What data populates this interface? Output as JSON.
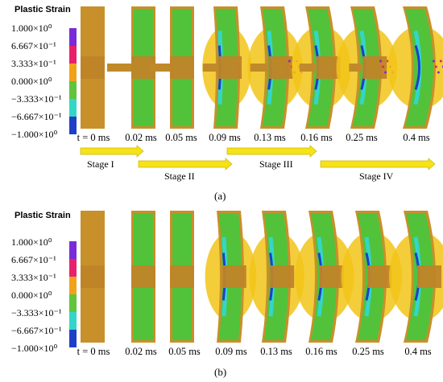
{
  "panel_a": {
    "title": "Plastic Strain",
    "legend_labels": [
      "1.000×10⁰",
      "6.667×10⁻¹",
      "3.333×10⁻¹",
      "0.000×10⁰",
      "−3.333×10⁻¹",
      "−6.667×10⁻¹",
      "−1.000×10⁰"
    ],
    "legend_colors": [
      "#7b2bd6",
      "#e8206a",
      "#f2a21a",
      "#62c43a",
      "#33d6c8",
      "#1f3fc8"
    ],
    "times": [
      "t = 0 ms",
      "0.02 ms",
      "0.05 ms",
      "0.09 ms",
      "0.13 ms",
      "0.16 ms",
      "0.25 ms",
      "0.4 ms"
    ],
    "stages": [
      "Stage I",
      "Stage II",
      "Stage III",
      "Stage IV"
    ],
    "caption": "(a)"
  },
  "panel_b": {
    "title": "Plastic Strain",
    "legend_labels": [
      "1.000×10⁰",
      "6.667×10⁻¹",
      "3.333×10⁻¹",
      "0.000×10⁰",
      "−3.333×10⁻¹",
      "−6.667×10⁻¹",
      "−1.000×10⁰"
    ],
    "legend_colors": [
      "#7b2bd6",
      "#e8206a",
      "#f2a21a",
      "#62c43a",
      "#33d6c8",
      "#1f3fc8"
    ],
    "times": [
      "t = 0 ms",
      "0.02 ms",
      "0.05 ms",
      "0.09 ms",
      "0.13 ms",
      "0.16 ms",
      "0.25 ms",
      "0.4 ms"
    ],
    "caption": "(b)"
  },
  "colors": {
    "plate_border": "#c8902a",
    "plate_green": "#52c23a",
    "bulge_yellow": "#f2c419",
    "arrow_fill": "#f7e118",
    "arrow_edge": "#c8b800",
    "cyan": "#33d6c8",
    "blue": "#1f3fc8"
  }
}
